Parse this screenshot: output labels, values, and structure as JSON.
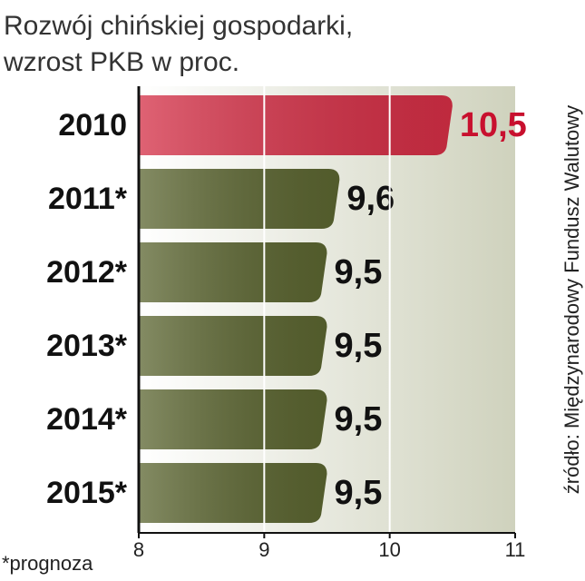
{
  "chart_data": {
    "type": "bar",
    "orientation": "horizontal",
    "title": "Rozwój chińskiej gospodarki,\nwzrost PKB w proc.",
    "categories": [
      "2010",
      "2011*",
      "2012*",
      "2013*",
      "2014*",
      "2015*"
    ],
    "values": [
      10.5,
      9.6,
      9.5,
      9.5,
      9.5,
      9.5
    ],
    "value_labels": [
      "10,5",
      "9,6",
      "9,5",
      "9,5",
      "9,5",
      "9,5"
    ],
    "colors": [
      "#d42e45",
      "#5b6530",
      "#5b6530",
      "#5b6530",
      "#5b6530",
      "#5b6530"
    ],
    "value_label_colors": [
      "#c8102e",
      "#111111",
      "#111111",
      "#111111",
      "#111111",
      "#111111"
    ],
    "xlim": [
      8,
      11
    ],
    "xticks": [
      8,
      9,
      10,
      11
    ],
    "grid": true,
    "footnote": "*prognoza",
    "source": "źródło: Międzynarodowy Fundusz Walutowy"
  }
}
